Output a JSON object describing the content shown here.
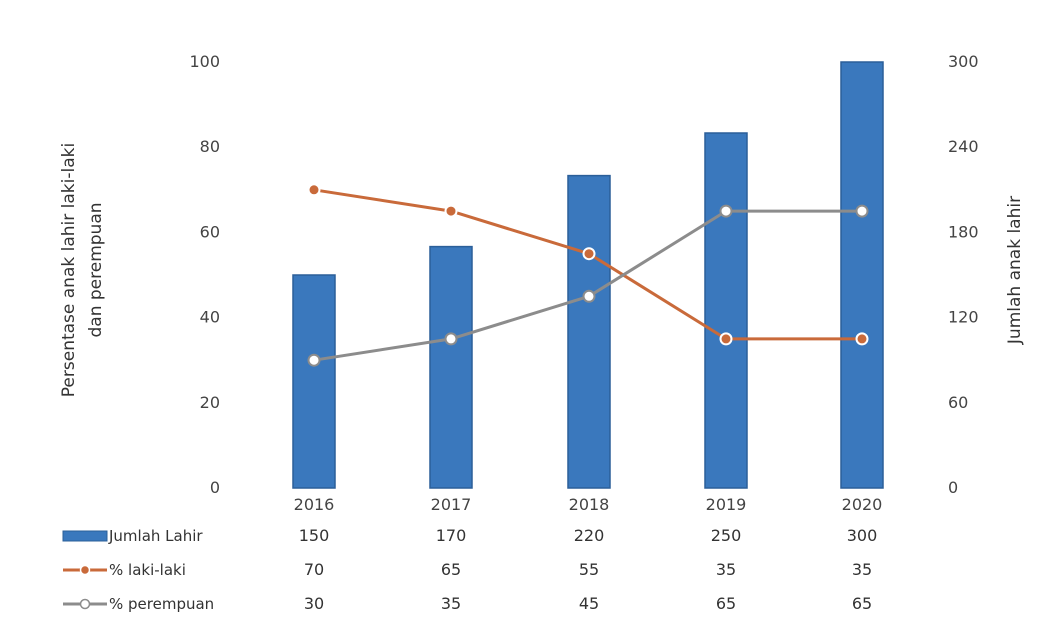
{
  "chart_data": {
    "type": "bar",
    "categories": [
      "2016",
      "2017",
      "2018",
      "2019",
      "2020"
    ],
    "ylabel": "Persentase anak lahir laki-laki dan perempuan",
    "y2label": "Jumlah anak lahir",
    "ylim": [
      0,
      100
    ],
    "y2lim": [
      0,
      300
    ],
    "yticks": [
      "0",
      "20",
      "40",
      "60",
      "80",
      "100"
    ],
    "y2ticks": [
      "0",
      "60",
      "120",
      "180",
      "240",
      "300"
    ],
    "grid": false,
    "series": [
      {
        "name": "Jumlah Lahir",
        "type": "bar",
        "axis": "right",
        "values": [
          150,
          170,
          220,
          250,
          300
        ],
        "color": "#3a78bd"
      },
      {
        "name": "% laki-laki",
        "type": "line",
        "axis": "left",
        "values": [
          70,
          65,
          55,
          35,
          35
        ],
        "color": "#c96a3a"
      },
      {
        "name": "% perempuan",
        "type": "line",
        "axis": "left",
        "values": [
          30,
          35,
          45,
          65,
          65
        ],
        "color": "#8c8c8c"
      }
    ],
    "table": {
      "rows": [
        {
          "label": "Jumlah Lahir",
          "cells": [
            "150",
            "170",
            "220",
            "250",
            "300"
          ]
        },
        {
          "label": "% laki-laki",
          "cells": [
            "70",
            "65",
            "55",
            "35",
            "35"
          ]
        },
        {
          "label": "% perempuan",
          "cells": [
            "30",
            "35",
            "45",
            "65",
            "65"
          ]
        }
      ]
    }
  }
}
